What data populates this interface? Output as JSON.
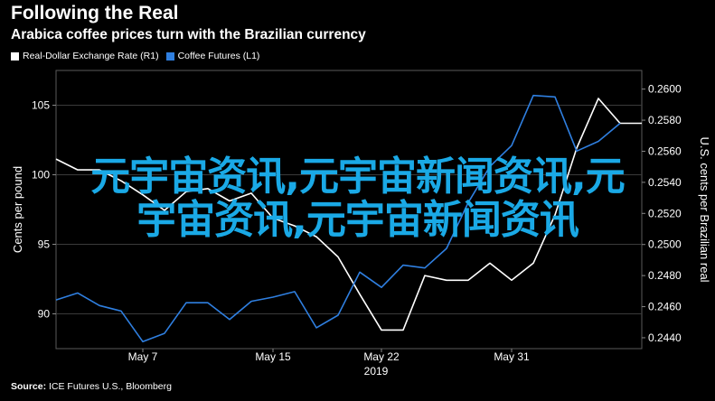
{
  "header": {
    "title": "Following the Real",
    "subtitle": "Arabica coffee prices turn with the Brazilian currency"
  },
  "legend": [
    {
      "label": "Real-Dollar Exchange Rate (R1)",
      "color": "#ffffff"
    },
    {
      "label": "Coffee Futures (L1)",
      "color": "#2f7fe0"
    }
  ],
  "footer": {
    "source_label": "Source:",
    "source_text": "ICE Futures U.S., Bloomberg"
  },
  "watermark": {
    "line1": "元宇宙资讯,元宇宙新闻资讯,元",
    "line2": "宇宙资讯,元宇宙新闻资讯"
  },
  "chart_data": {
    "type": "line",
    "x_tick_labels": [
      "May 7",
      "May 15",
      "May 22",
      "May 31"
    ],
    "x_year_label": "2019",
    "left_axis": {
      "label": "Cents per pound",
      "ticks": [
        90,
        95,
        100,
        105
      ],
      "range": [
        87.5,
        107.5
      ]
    },
    "right_axis": {
      "label": "U.S. cents per Brazilian real",
      "ticks": [
        "0.2440",
        "0.2460",
        "0.2480",
        "0.2500",
        "0.2520",
        "0.2540",
        "0.2560",
        "0.2580",
        "0.2600"
      ],
      "range": [
        0.2433,
        0.2612
      ]
    },
    "series": [
      {
        "name": "Real-Dollar Exchange Rate (R1)",
        "axis": "right",
        "color": "#ffffff",
        "values": [
          0.2555,
          0.2548,
          0.2548,
          0.2541,
          0.2532,
          0.2522,
          0.2534,
          0.2536,
          0.2528,
          0.2533,
          0.2517,
          0.2512,
          0.2505,
          0.2492,
          0.2468,
          0.2445,
          0.2445,
          0.248,
          0.2477,
          0.2477,
          0.2488,
          0.2477,
          0.2488,
          0.2519,
          0.2562,
          0.2594,
          0.2578,
          0.2578
        ]
      },
      {
        "name": "Coffee Futures (L1)",
        "axis": "left",
        "color": "#2f7fe0",
        "values": [
          91.0,
          91.5,
          90.6,
          90.2,
          88.0,
          88.6,
          90.8,
          90.8,
          89.6,
          90.9,
          91.2,
          91.6,
          89.0,
          89.9,
          93.0,
          91.9,
          93.5,
          93.3,
          94.7,
          98.0,
          100.6,
          102.1,
          105.7,
          105.6,
          101.7,
          102.4,
          103.7
        ]
      }
    ]
  }
}
